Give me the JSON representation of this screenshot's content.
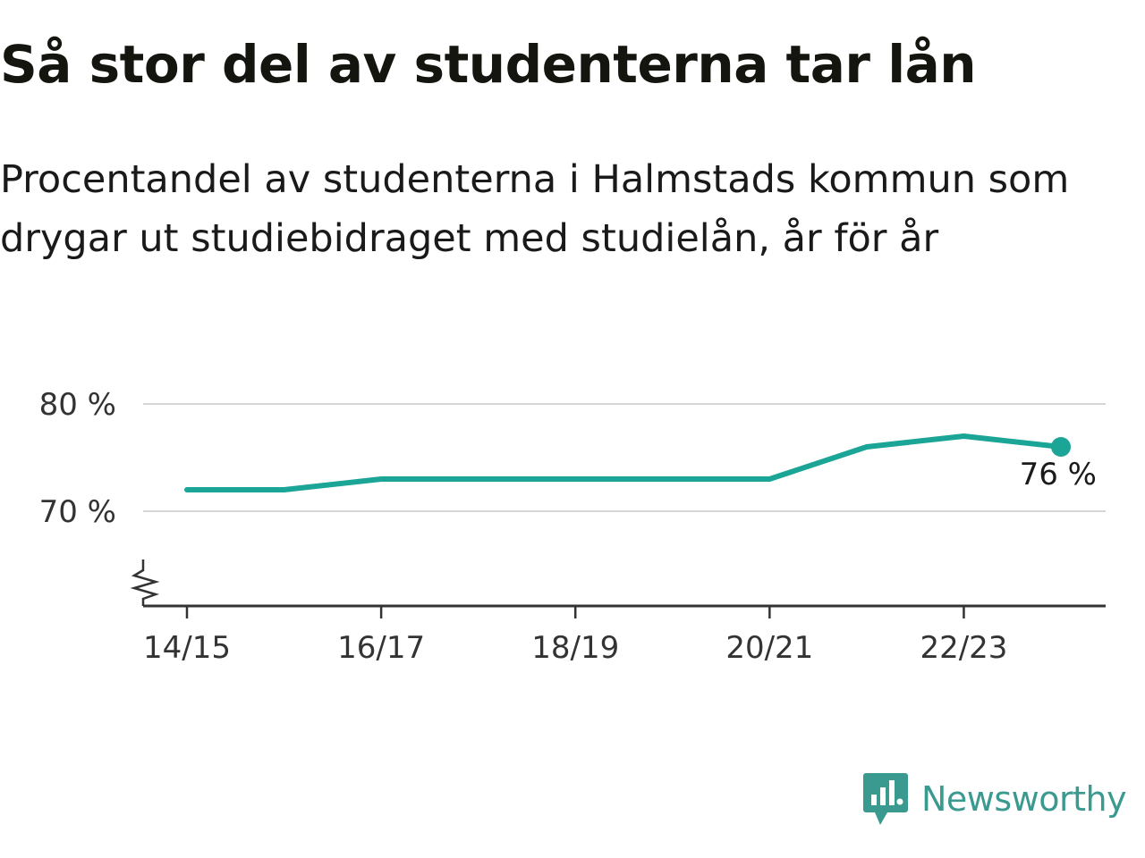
{
  "header": {
    "title": "Så stor del av studenterna tar lån",
    "subtitle": "Procentandel av studenterna i Halmstads kommun som drygar ut studiebidraget med studielån, år för år"
  },
  "chart_data": {
    "type": "line",
    "categories": [
      "14/15",
      "15/16",
      "16/17",
      "17/18",
      "18/19",
      "19/20",
      "20/21",
      "21/22",
      "22/23",
      "23/24"
    ],
    "x_tick_labels": [
      "14/15",
      "16/17",
      "18/19",
      "20/21",
      "22/23"
    ],
    "series": [
      {
        "values": [
          72,
          72,
          73,
          73,
          73,
          73,
          73,
          76,
          77,
          76
        ]
      }
    ],
    "y_ticks": [
      {
        "value": 70,
        "label": "70 %"
      },
      {
        "value": 80,
        "label": "80 %"
      }
    ],
    "ylim": [
      61,
      80
    ],
    "y_axis_broken": true,
    "last_value_label": "76 %",
    "grid": true,
    "color": "#1aa596"
  },
  "logo": {
    "text": "Newsworthy",
    "color": "#3a9a90"
  }
}
